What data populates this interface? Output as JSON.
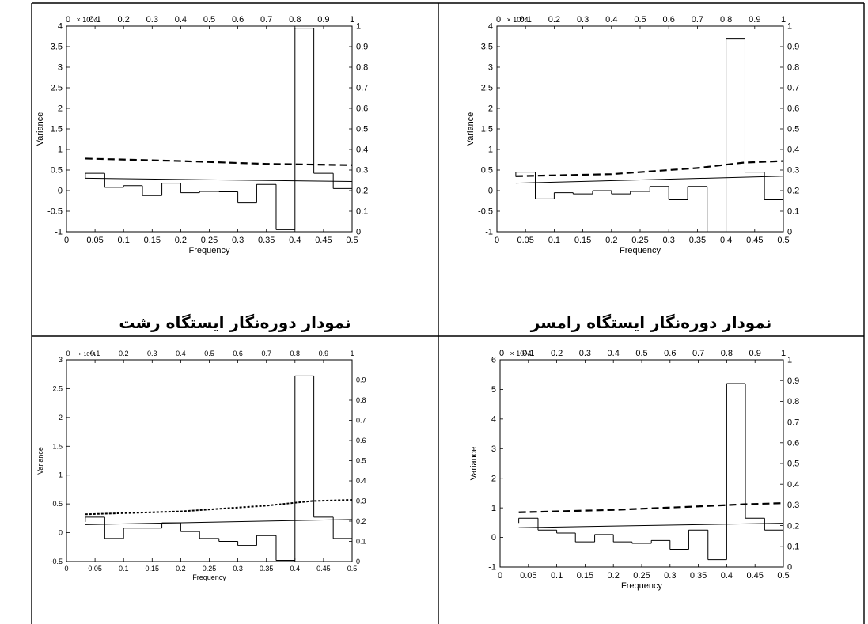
{
  "captions": {
    "rasht": "نمودار دوره‌نگار ایستگاه رشت",
    "ramsar": "نمودار دوره‌نگار ایستگاه رامسر"
  },
  "style": {
    "line_color": "#000000",
    "background": "#ffffff"
  },
  "chart_data": [
    {
      "id": "rasht",
      "type": "bar",
      "xlabel": "Frequency",
      "ylabel": "Variance",
      "exponent": "× 10^4",
      "xlim": [
        0,
        0.5
      ],
      "ylim": [
        -1,
        4
      ],
      "xticks": [
        0,
        0.05,
        0.1,
        0.15,
        0.2,
        0.25,
        0.3,
        0.35,
        0.4,
        0.45,
        0.5
      ],
      "yticks": [
        -1,
        -0.5,
        0,
        0.5,
        1,
        1.5,
        2,
        2.5,
        3,
        3.5,
        4
      ],
      "top_ticks": [
        0,
        0.1,
        0.2,
        0.3,
        0.4,
        0.5,
        0.6,
        0.7,
        0.8,
        0.9,
        1
      ],
      "right_ticks": [
        0,
        0.1,
        0.2,
        0.3,
        0.4,
        0.5,
        0.6,
        0.7,
        0.8,
        0.9,
        1
      ],
      "step_x": [
        0.033,
        0.067,
        0.1,
        0.133,
        0.167,
        0.2,
        0.233,
        0.267,
        0.3,
        0.333,
        0.367,
        0.4,
        0.433,
        0.467,
        0.5
      ],
      "step_y": [
        0.42,
        0.08,
        0.12,
        -0.12,
        0.18,
        -0.05,
        -0.02,
        -0.03,
        -0.3,
        0.15,
        -0.95,
        3.95,
        0.42,
        0.05
      ],
      "solid_line": [
        [
          0.033,
          0.3
        ],
        [
          0.5,
          0.22
        ]
      ],
      "dashed_line": [
        [
          0.033,
          0.78
        ],
        [
          0.2,
          0.72
        ],
        [
          0.35,
          0.65
        ],
        [
          0.5,
          0.62
        ]
      ]
    },
    {
      "id": "ramsar",
      "type": "bar",
      "xlabel": "Frequency",
      "ylabel": "Variance",
      "exponent": "× 10^4",
      "xlim": [
        0,
        0.5
      ],
      "ylim": [
        -1,
        4
      ],
      "xticks": [
        0,
        0.05,
        0.1,
        0.15,
        0.2,
        0.25,
        0.3,
        0.35,
        0.4,
        0.45,
        0.5
      ],
      "yticks": [
        -1,
        -0.5,
        0,
        0.5,
        1,
        1.5,
        2,
        2.5,
        3,
        3.5,
        4
      ],
      "top_ticks": [
        0,
        0.1,
        0.2,
        0.3,
        0.4,
        0.5,
        0.6,
        0.7,
        0.8,
        0.9,
        1
      ],
      "right_ticks": [
        0,
        0.1,
        0.2,
        0.3,
        0.4,
        0.5,
        0.6,
        0.7,
        0.8,
        0.9,
        1
      ],
      "step_x": [
        0.033,
        0.067,
        0.1,
        0.133,
        0.167,
        0.2,
        0.233,
        0.267,
        0.3,
        0.333,
        0.367,
        0.4,
        0.433,
        0.467,
        0.5
      ],
      "step_y": [
        0.45,
        -0.2,
        -0.05,
        -0.08,
        0.0,
        -0.08,
        -0.02,
        0.1,
        -0.22,
        0.1,
        -1.0,
        3.7,
        0.45,
        -0.22
      ],
      "solid_line": [
        [
          0.033,
          0.18
        ],
        [
          0.5,
          0.35
        ]
      ],
      "dashed_line": [
        [
          0.033,
          0.35
        ],
        [
          0.2,
          0.4
        ],
        [
          0.35,
          0.55
        ],
        [
          0.43,
          0.68
        ],
        [
          0.5,
          0.72
        ]
      ]
    },
    {
      "id": "station3",
      "type": "bar",
      "xlabel": "Frequency",
      "ylabel": "Variance",
      "exponent": "× 10^4",
      "xlim": [
        0,
        0.5
      ],
      "ylim": [
        -0.5,
        3
      ],
      "xticks": [
        0,
        0.05,
        0.1,
        0.15,
        0.2,
        0.25,
        0.3,
        0.35,
        0.4,
        0.45,
        0.5
      ],
      "yticks": [
        -0.5,
        0,
        0.5,
        1,
        1.5,
        2,
        2.5,
        3
      ],
      "top_ticks": [
        0,
        0.1,
        0.2,
        0.3,
        0.4,
        0.5,
        0.6,
        0.7,
        0.8,
        0.9,
        1
      ],
      "right_ticks": [
        0,
        0.1,
        0.2,
        0.3,
        0.4,
        0.5,
        0.6,
        0.7,
        0.8,
        0.9
      ],
      "step_x": [
        0.033,
        0.067,
        0.1,
        0.133,
        0.167,
        0.2,
        0.233,
        0.267,
        0.3,
        0.333,
        0.367,
        0.4,
        0.433,
        0.467,
        0.5
      ],
      "step_y": [
        0.27,
        -0.1,
        0.08,
        0.08,
        0.17,
        0.02,
        -0.1,
        -0.15,
        -0.22,
        -0.05,
        -0.48,
        2.72,
        0.27,
        -0.1
      ],
      "solid_line": [
        [
          0.033,
          0.14
        ],
        [
          0.5,
          0.23
        ]
      ],
      "dashed_line": [
        [
          0.033,
          0.32
        ],
        [
          0.2,
          0.37
        ],
        [
          0.35,
          0.47
        ],
        [
          0.43,
          0.55
        ],
        [
          0.5,
          0.57
        ]
      ]
    },
    {
      "id": "station4",
      "type": "bar",
      "xlabel": "Frequency",
      "ylabel": "Variance",
      "exponent": "× 10^4",
      "xlim": [
        0,
        0.5
      ],
      "ylim": [
        -1,
        6
      ],
      "xticks": [
        0,
        0.05,
        0.1,
        0.15,
        0.2,
        0.25,
        0.3,
        0.35,
        0.4,
        0.45,
        0.5
      ],
      "yticks": [
        -1,
        0,
        1,
        2,
        3,
        4,
        5,
        6
      ],
      "top_ticks": [
        0,
        0.1,
        0.2,
        0.3,
        0.4,
        0.5,
        0.6,
        0.7,
        0.8,
        0.9,
        1
      ],
      "right_ticks": [
        0,
        0.1,
        0.2,
        0.3,
        0.4,
        0.5,
        0.6,
        0.7,
        0.8,
        0.9,
        1
      ],
      "step_x": [
        0.033,
        0.067,
        0.1,
        0.133,
        0.167,
        0.2,
        0.233,
        0.267,
        0.3,
        0.333,
        0.367,
        0.4,
        0.433,
        0.467,
        0.5
      ],
      "step_y": [
        0.65,
        0.25,
        0.15,
        -0.15,
        0.1,
        -0.15,
        -0.2,
        -0.1,
        -0.4,
        0.25,
        -0.75,
        5.2,
        0.65,
        0.25
      ],
      "solid_line": [
        [
          0.033,
          0.33
        ],
        [
          0.5,
          0.48
        ]
      ],
      "dashed_line": [
        [
          0.033,
          0.85
        ],
        [
          0.2,
          0.93
        ],
        [
          0.35,
          1.05
        ],
        [
          0.43,
          1.12
        ],
        [
          0.5,
          1.16
        ]
      ]
    }
  ]
}
